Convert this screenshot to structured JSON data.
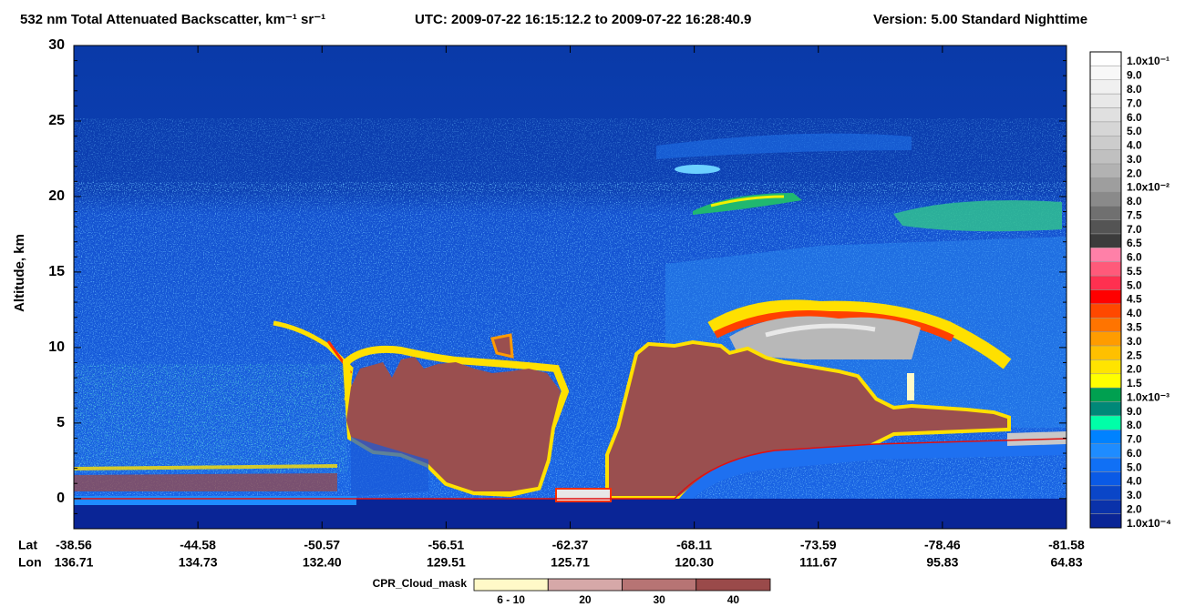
{
  "chart_data": {
    "type": "curtain",
    "title": "532 nm Total Attenuated Backscatter, km⁻¹ sr⁻¹",
    "utc": "UTC:  2009-07-22 16:15:12.2  to  2009-07-22 16:28:40.9",
    "version": "Version: 5.00  Standard  Nighttime",
    "y_label": "Altitude, km",
    "ylim": [
      -2,
      30
    ],
    "yticks": [
      0,
      5,
      10,
      15,
      20,
      25,
      30
    ],
    "x_labels": [
      "Lat",
      "Lon"
    ],
    "categories": [
      "-38.56",
      "-44.58",
      "-50.57",
      "-56.51",
      "-62.37",
      "-68.11",
      "-73.59",
      "-78.46",
      "-81.58"
    ],
    "lon": [
      "136.71",
      "134.73",
      "132.40",
      "129.51",
      "125.71",
      "120.30",
      "111.67",
      "95.83",
      "64.83"
    ],
    "colorbar": {
      "labels": [
        "1.0x10⁻¹",
        "9.0",
        "8.0",
        "7.0",
        "6.0",
        "5.0",
        "4.0",
        "3.0",
        "2.0",
        "1.0x10⁻²",
        "8.0",
        "7.5",
        "7.0",
        "6.5",
        "6.0",
        "5.5",
        "5.0",
        "4.5",
        "4.0",
        "3.5",
        "3.0",
        "2.5",
        "2.0",
        "1.5",
        "1.0x10⁻³",
        "9.0",
        "8.0",
        "7.0",
        "6.0",
        "5.0",
        "4.0",
        "3.0",
        "2.0",
        "1.0x10⁻⁴"
      ],
      "colors": [
        "#ffffff",
        "#f8f8f8",
        "#f0f0f0",
        "#e8e8e8",
        "#e0e0e0",
        "#d6d6d6",
        "#cccccc",
        "#c0c0c0",
        "#b2b2b2",
        "#9e9e9e",
        "#8a8a8a",
        "#707070",
        "#545454",
        "#3c3c3c",
        "#ff80a8",
        "#ff5a7a",
        "#ff3050",
        "#ff0000",
        "#ff4800",
        "#ff7400",
        "#ff9c00",
        "#ffc000",
        "#ffe400",
        "#ffff00",
        "#00a050",
        "#008878",
        "#00ffa8",
        "#0082ff",
        "#1e8cff",
        "#1070f5",
        "#0a5ae6",
        "#0a46c8",
        "#0a32aa",
        "#0a2596"
      ]
    },
    "cpr_legend": {
      "title": "CPR_Cloud_mask",
      "labels": [
        "6 - 10",
        "20",
        "30",
        "40"
      ],
      "colors": [
        "#fff9c8",
        "#d6a8a8",
        "#b77474",
        "#9a4a4a"
      ]
    }
  }
}
